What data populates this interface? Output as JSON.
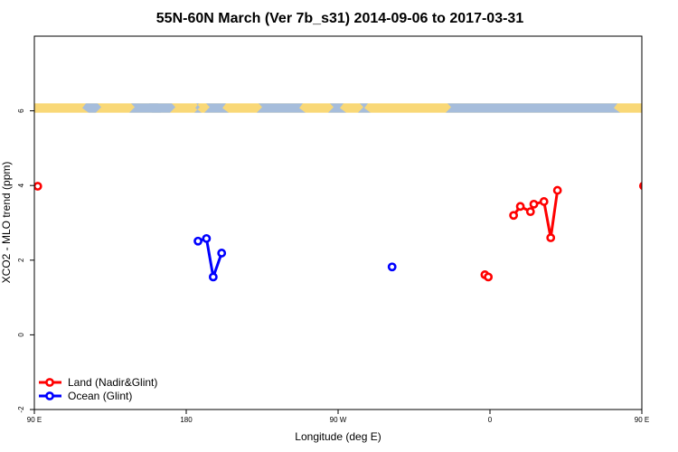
{
  "chart_data": {
    "type": "line",
    "title": "55N-60N March (Ver 7b_s31)   2014-09-06 to 2017-03-31",
    "xlabel": "Longitude (deg E)",
    "ylabel": "XCO2 - MLO trend (ppm)",
    "xlim": [
      90,
      450
    ],
    "ylim": [
      -2,
      8
    ],
    "x_ticks": [
      {
        "value": 90,
        "label": "90 E"
      },
      {
        "value": 180,
        "label": "180"
      },
      {
        "value": 270,
        "label": "90 W"
      },
      {
        "value": 360,
        "label": "0"
      },
      {
        "value": 450,
        "label": "90 E"
      },
      {
        "value": 540,
        "label": "180"
      }
    ],
    "y_ticks": [
      {
        "value": -2,
        "label": "-2"
      },
      {
        "value": 0,
        "label": "0"
      },
      {
        "value": 2,
        "label": "2"
      },
      {
        "value": 4,
        "label": "4"
      },
      {
        "value": 6,
        "label": "6"
      }
    ],
    "grid": false,
    "legend_position": "bottom-left",
    "map_strip": {
      "lat_range": "55N-60N",
      "y_range": [
        5.95,
        6.2
      ],
      "land_color": "#f9d877",
      "ocean_color": "#a6bddb"
    },
    "series": [
      {
        "name": "Land (Nadir&Glint)",
        "color": "#ff0000",
        "segments": [
          [
            [
              92,
              3.98
            ]
          ],
          [
            [
              85,
              3.98
            ]
          ],
          [
            [
              357,
              1.61
            ],
            [
              359,
              1.55
            ]
          ],
          [
            [
              374,
              3.2
            ],
            [
              378,
              3.44
            ],
            [
              384,
              3.3
            ],
            [
              386,
              3.5
            ],
            [
              392,
              3.57
            ],
            [
              396,
              2.6
            ],
            [
              400,
              3.87
            ]
          ],
          [
            [
              451,
              3.99
            ]
          ]
        ]
      },
      {
        "name": "Ocean (Glint)",
        "color": "#0000ff",
        "segments": [
          [
            [
              187,
              2.51
            ],
            [
              192,
              2.58
            ],
            [
              196,
              1.55
            ],
            [
              201,
              2.19
            ]
          ],
          [
            [
              302,
              1.82
            ]
          ]
        ]
      }
    ]
  }
}
